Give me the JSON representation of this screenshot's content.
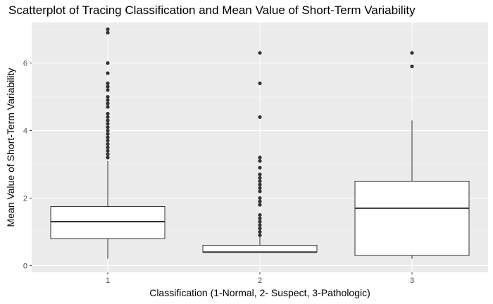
{
  "chart_data": {
    "type": "box",
    "title": "Scatterplot of Tracing Classification and Mean Value of Short-Term Variability",
    "xlabel": "Classification (1-Normal, 2- Suspect, 3-Pathologic)",
    "ylabel": "Mean Value of Short-Term Variability",
    "categories": [
      "1",
      "2",
      "3"
    ],
    "ylim": [
      -0.2,
      7.2
    ],
    "yticks": [
      0,
      2,
      4,
      6
    ],
    "grid": true,
    "legend": "none",
    "colors": {
      "panel": "#ebebeb",
      "grid_major": "#ffffff",
      "grid_minor": "#f5f5f5",
      "box_fill": "#ffffff",
      "box_line": "#333333",
      "outlier": "#333333"
    },
    "boxes": [
      {
        "category": "1",
        "min": 0.2,
        "q1": 0.8,
        "median": 1.3,
        "q3": 1.75,
        "max": 3.1,
        "outliers": [
          3.2,
          3.3,
          3.4,
          3.5,
          3.6,
          3.7,
          3.8,
          3.9,
          4.0,
          4.1,
          4.2,
          4.3,
          4.4,
          4.5,
          4.7,
          4.8,
          4.9,
          5.0,
          5.2,
          5.3,
          5.4,
          5.7,
          6.0,
          6.9,
          7.0
        ]
      },
      {
        "category": "2",
        "min": 0.4,
        "q1": 0.4,
        "median": 0.4,
        "q3": 0.6,
        "max": 0.85,
        "outliers": [
          0.9,
          1.0,
          1.1,
          1.2,
          1.3,
          1.4,
          1.5,
          1.8,
          1.9,
          2.0,
          2.2,
          2.3,
          2.4,
          2.5,
          2.6,
          2.7,
          2.9,
          3.1,
          3.2,
          4.4,
          5.4,
          6.3
        ]
      },
      {
        "category": "3",
        "min": 0.2,
        "q1": 0.3,
        "median": 1.7,
        "q3": 2.5,
        "max": 4.3,
        "outliers": [
          5.9,
          6.3
        ]
      }
    ]
  }
}
